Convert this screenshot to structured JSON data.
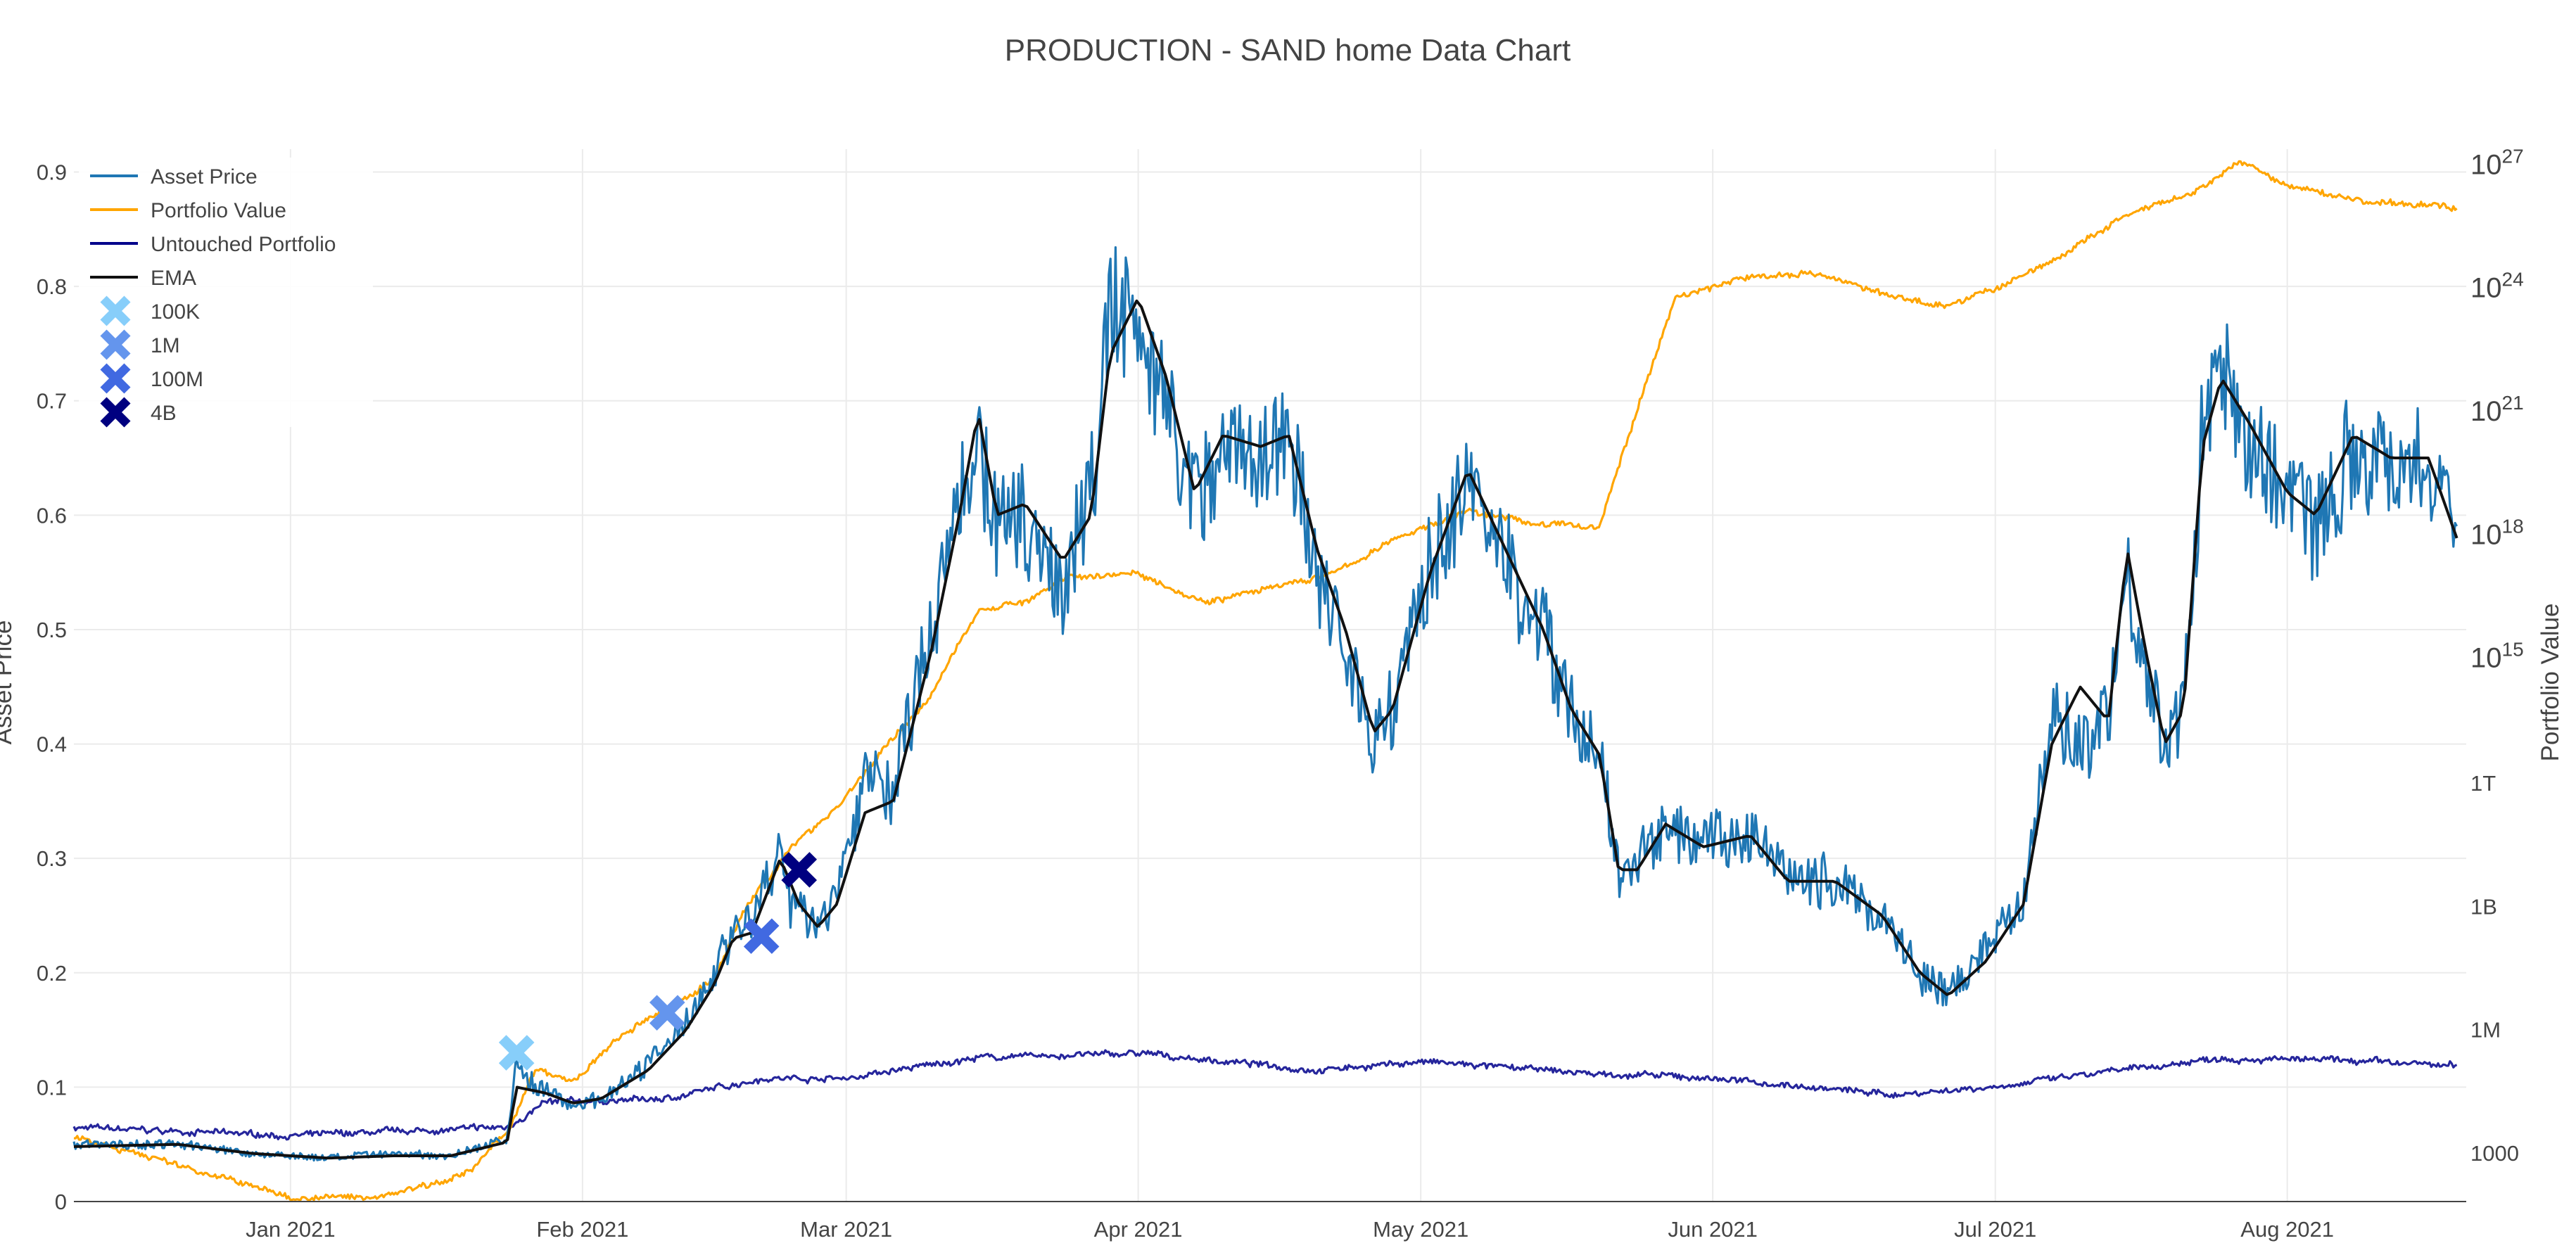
{
  "chart_data": {
    "type": "line",
    "title": "PRODUCTION - SAND home Data Chart",
    "xaxis": {
      "ticks": [
        {
          "date": "2021-01-01",
          "label": "Jan 2021"
        },
        {
          "date": "2021-02-01",
          "label": "Feb 2021"
        },
        {
          "date": "2021-03-01",
          "label": "Mar 2021"
        },
        {
          "date": "2021-04-01",
          "label": "Apr 2021"
        },
        {
          "date": "2021-05-01",
          "label": "May 2021"
        },
        {
          "date": "2021-06-01",
          "label": "Jun 2021"
        },
        {
          "date": "2021-07-01",
          "label": "Jul 2021"
        },
        {
          "date": "2021-08-01",
          "label": "Aug 2021"
        }
      ],
      "range": [
        "2020-12-09",
        "2021-08-20"
      ]
    },
    "yaxis_left": {
      "title": "Asset Price",
      "range": [
        0,
        0.92
      ],
      "ticks": [
        0,
        0.1,
        0.2,
        0.3,
        0.4,
        0.5,
        0.6,
        0.7,
        0.8,
        0.9
      ],
      "tick_labels": [
        "0",
        "0.1",
        "0.2",
        "0.3",
        "0.4",
        "0.5",
        "0.6",
        "0.7",
        "0.8",
        "0.9"
      ]
    },
    "yaxis_right": {
      "title": "Portfolio Value",
      "scale": "log",
      "range_log10": [
        1.8,
        27.4
      ],
      "ticks": [
        {
          "log10": 3,
          "label": "1000"
        },
        {
          "log10": 6,
          "label": "1M"
        },
        {
          "log10": 9,
          "label": "1B"
        },
        {
          "log10": 12,
          "label": "1T"
        },
        {
          "log10": 15,
          "base": "10",
          "exp": "15"
        },
        {
          "log10": 18,
          "base": "10",
          "exp": "18"
        },
        {
          "log10": 21,
          "base": "10",
          "exp": "21"
        },
        {
          "log10": 24,
          "base": "10",
          "exp": "24"
        },
        {
          "log10": 27,
          "base": "10",
          "exp": "27"
        }
      ]
    },
    "series": [
      {
        "name": "Asset Price",
        "axis": "left",
        "color": "#1f77b4",
        "noisy": true,
        "points": [
          [
            "2020-12-09",
            0.05
          ],
          [
            "2020-12-20",
            0.05
          ],
          [
            "2020-12-28",
            0.042
          ],
          [
            "2021-01-05",
            0.038
          ],
          [
            "2021-01-12",
            0.042
          ],
          [
            "2021-01-18",
            0.04
          ],
          [
            "2021-01-24",
            0.055
          ],
          [
            "2021-01-25",
            0.12
          ],
          [
            "2021-01-27",
            0.1
          ],
          [
            "2021-01-31",
            0.085
          ],
          [
            "2021-02-03",
            0.09
          ],
          [
            "2021-02-08",
            0.12
          ],
          [
            "2021-02-12",
            0.16
          ],
          [
            "2021-02-15",
            0.2
          ],
          [
            "2021-02-17",
            0.245
          ],
          [
            "2021-02-19",
            0.24
          ],
          [
            "2021-02-22",
            0.31
          ],
          [
            "2021-02-23",
            0.26
          ],
          [
            "2021-02-26",
            0.24
          ],
          [
            "2021-02-28",
            0.27
          ],
          [
            "2021-03-03",
            0.37
          ],
          [
            "2021-03-06",
            0.36
          ],
          [
            "2021-03-10",
            0.5
          ],
          [
            "2021-03-13",
            0.62
          ],
          [
            "2021-03-15",
            0.67
          ],
          [
            "2021-03-17",
            0.59
          ],
          [
            "2021-03-20",
            0.6
          ],
          [
            "2021-03-24",
            0.54
          ],
          [
            "2021-03-27",
            0.62
          ],
          [
            "2021-03-29",
            0.78
          ],
          [
            "2021-04-01",
            0.78
          ],
          [
            "2021-04-04",
            0.7
          ],
          [
            "2021-04-07",
            0.6
          ],
          [
            "2021-04-10",
            0.67
          ],
          [
            "2021-04-14",
            0.65
          ],
          [
            "2021-04-17",
            0.67
          ],
          [
            "2021-04-20",
            0.55
          ],
          [
            "2021-04-23",
            0.49
          ],
          [
            "2021-04-26",
            0.4
          ],
          [
            "2021-04-28",
            0.43
          ],
          [
            "2021-05-02",
            0.56
          ],
          [
            "2021-05-06",
            0.62
          ],
          [
            "2021-05-10",
            0.56
          ],
          [
            "2021-05-14",
            0.5
          ],
          [
            "2021-05-17",
            0.43
          ],
          [
            "2021-05-20",
            0.39
          ],
          [
            "2021-05-22",
            0.28
          ],
          [
            "2021-05-24",
            0.3
          ],
          [
            "2021-05-27",
            0.32
          ],
          [
            "2021-05-31",
            0.31
          ],
          [
            "2021-06-05",
            0.32
          ],
          [
            "2021-06-09",
            0.28
          ],
          [
            "2021-06-14",
            0.28
          ],
          [
            "2021-06-19",
            0.25
          ],
          [
            "2021-06-23",
            0.2
          ],
          [
            "2021-06-26",
            0.18
          ],
          [
            "2021-06-30",
            0.22
          ],
          [
            "2021-07-04",
            0.27
          ],
          [
            "2021-07-07",
            0.42
          ],
          [
            "2021-07-10",
            0.4
          ],
          [
            "2021-07-13",
            0.43
          ],
          [
            "2021-07-15",
            0.56
          ],
          [
            "2021-07-17",
            0.47
          ],
          [
            "2021-07-19",
            0.4
          ],
          [
            "2021-07-21",
            0.43
          ],
          [
            "2021-07-23",
            0.68
          ],
          [
            "2021-07-25",
            0.72
          ],
          [
            "2021-07-28",
            0.67
          ],
          [
            "2021-08-01",
            0.62
          ],
          [
            "2021-08-04",
            0.6
          ],
          [
            "2021-08-08",
            0.66
          ],
          [
            "2021-08-12",
            0.65
          ],
          [
            "2021-08-16",
            0.64
          ],
          [
            "2021-08-19",
            0.59
          ]
        ]
      },
      {
        "name": "Portfolio Value",
        "axis": "right",
        "color": "#ffa500",
        "noisy": true,
        "points": [
          [
            "2020-12-09",
            3.4
          ],
          [
            "2020-12-20",
            2.7
          ],
          [
            "2021-01-01",
            1.9
          ],
          [
            "2021-01-10",
            1.9
          ],
          [
            "2021-01-20",
            2.5
          ],
          [
            "2021-01-24",
            3.5
          ],
          [
            "2021-01-27",
            5.0
          ],
          [
            "2021-01-31",
            4.7
          ],
          [
            "2021-02-05",
            5.8
          ],
          [
            "2021-02-10",
            6.5
          ],
          [
            "2021-02-15",
            7.2
          ],
          [
            "2021-02-18",
            8.8
          ],
          [
            "2021-02-20",
            9.5
          ],
          [
            "2021-02-24",
            10.6
          ],
          [
            "2021-02-28",
            11.4
          ],
          [
            "2021-03-05",
            12.8
          ],
          [
            "2021-03-10",
            14.1
          ],
          [
            "2021-03-15",
            16.2
          ],
          [
            "2021-03-20",
            16.4
          ],
          [
            "2021-03-25",
            17.0
          ],
          [
            "2021-04-01",
            17.1
          ],
          [
            "2021-04-08",
            16.4
          ],
          [
            "2021-04-15",
            16.7
          ],
          [
            "2021-04-22",
            17.1
          ],
          [
            "2021-04-29",
            18.0
          ],
          [
            "2021-05-06",
            18.6
          ],
          [
            "2021-05-13",
            18.3
          ],
          [
            "2021-05-20",
            18.2
          ],
          [
            "2021-05-21",
            19.0
          ],
          [
            "2021-05-28",
            23.8
          ],
          [
            "2021-06-05",
            24.3
          ],
          [
            "2021-06-12",
            24.4
          ],
          [
            "2021-06-20",
            23.8
          ],
          [
            "2021-06-26",
            23.6
          ],
          [
            "2021-07-02",
            24.1
          ],
          [
            "2021-07-08",
            24.8
          ],
          [
            "2021-07-15",
            25.8
          ],
          [
            "2021-07-22",
            26.3
          ],
          [
            "2021-07-27",
            27.1
          ],
          [
            "2021-08-01",
            26.5
          ],
          [
            "2021-08-10",
            26.1
          ],
          [
            "2021-08-19",
            26.0
          ]
        ]
      },
      {
        "name": "Untouched Portfolio",
        "axis": "right",
        "color": "#00008b",
        "noisy": true,
        "points": [
          [
            "2020-12-09",
            3.6
          ],
          [
            "2021-01-01",
            3.4
          ],
          [
            "2021-01-24",
            3.6
          ],
          [
            "2021-01-28",
            4.2
          ],
          [
            "2021-02-10",
            4.3
          ],
          [
            "2021-02-20",
            4.8
          ],
          [
            "2021-03-01",
            4.8
          ],
          [
            "2021-03-15",
            5.3
          ],
          [
            "2021-04-01",
            5.4
          ],
          [
            "2021-04-20",
            5.0
          ],
          [
            "2021-05-01",
            5.2
          ],
          [
            "2021-05-20",
            4.9
          ],
          [
            "2021-06-01",
            4.8
          ],
          [
            "2021-06-20",
            4.4
          ],
          [
            "2021-07-01",
            4.6
          ],
          [
            "2021-07-15",
            5.0
          ],
          [
            "2021-07-25",
            5.3
          ],
          [
            "2021-08-10",
            5.2
          ],
          [
            "2021-08-19",
            5.1
          ]
        ]
      },
      {
        "name": "EMA",
        "axis": "left",
        "color": "#111111",
        "noisy": false,
        "points": [
          [
            "2020-12-09",
            0.048
          ],
          [
            "2020-12-20",
            0.05
          ],
          [
            "2020-12-28",
            0.042
          ],
          [
            "2021-01-05",
            0.038
          ],
          [
            "2021-01-12",
            0.04
          ],
          [
            "2021-01-18",
            0.04
          ],
          [
            "2021-01-24",
            0.052
          ],
          [
            "2021-01-25",
            0.1
          ],
          [
            "2021-01-28",
            0.095
          ],
          [
            "2021-01-31",
            0.086
          ],
          [
            "2021-02-03",
            0.09
          ],
          [
            "2021-02-08",
            0.115
          ],
          [
            "2021-02-12",
            0.15
          ],
          [
            "2021-02-15",
            0.19
          ],
          [
            "2021-02-17",
            0.23
          ],
          [
            "2021-02-19",
            0.235
          ],
          [
            "2021-02-22",
            0.3
          ],
          [
            "2021-02-24",
            0.26
          ],
          [
            "2021-02-26",
            0.24
          ],
          [
            "2021-02-28",
            0.26
          ],
          [
            "2021-03-03",
            0.34
          ],
          [
            "2021-03-06",
            0.35
          ],
          [
            "2021-03-10",
            0.48
          ],
          [
            "2021-03-13",
            0.6
          ],
          [
            "2021-03-15",
            0.69
          ],
          [
            "2021-03-17",
            0.6
          ],
          [
            "2021-03-20",
            0.61
          ],
          [
            "2021-03-24",
            0.56
          ],
          [
            "2021-03-27",
            0.6
          ],
          [
            "2021-03-29",
            0.74
          ],
          [
            "2021-04-01",
            0.79
          ],
          [
            "2021-04-04",
            0.72
          ],
          [
            "2021-04-07",
            0.62
          ],
          [
            "2021-04-10",
            0.67
          ],
          [
            "2021-04-14",
            0.66
          ],
          [
            "2021-04-17",
            0.67
          ],
          [
            "2021-04-20",
            0.57
          ],
          [
            "2021-04-23",
            0.5
          ],
          [
            "2021-04-26",
            0.41
          ],
          [
            "2021-04-28",
            0.43
          ],
          [
            "2021-05-02",
            0.55
          ],
          [
            "2021-05-06",
            0.64
          ],
          [
            "2021-05-10",
            0.57
          ],
          [
            "2021-05-14",
            0.5
          ],
          [
            "2021-05-17",
            0.43
          ],
          [
            "2021-05-20",
            0.39
          ],
          [
            "2021-05-22",
            0.29
          ],
          [
            "2021-05-24",
            0.29
          ],
          [
            "2021-05-27",
            0.33
          ],
          [
            "2021-05-31",
            0.31
          ],
          [
            "2021-06-05",
            0.32
          ],
          [
            "2021-06-09",
            0.28
          ],
          [
            "2021-06-14",
            0.28
          ],
          [
            "2021-06-19",
            0.25
          ],
          [
            "2021-06-23",
            0.2
          ],
          [
            "2021-06-26",
            0.18
          ],
          [
            "2021-06-30",
            0.21
          ],
          [
            "2021-07-04",
            0.26
          ],
          [
            "2021-07-07",
            0.4
          ],
          [
            "2021-07-10",
            0.45
          ],
          [
            "2021-07-13",
            0.42
          ],
          [
            "2021-07-15",
            0.57
          ],
          [
            "2021-07-17",
            0.48
          ],
          [
            "2021-07-19",
            0.4
          ],
          [
            "2021-07-21",
            0.43
          ],
          [
            "2021-07-23",
            0.66
          ],
          [
            "2021-07-25",
            0.72
          ],
          [
            "2021-07-28",
            0.68
          ],
          [
            "2021-08-01",
            0.62
          ],
          [
            "2021-08-04",
            0.6
          ],
          [
            "2021-08-08",
            0.67
          ],
          [
            "2021-08-12",
            0.65
          ],
          [
            "2021-08-16",
            0.65
          ],
          [
            "2021-08-19",
            0.58
          ]
        ]
      }
    ],
    "markers": [
      {
        "name": "100K",
        "color": "#87cefa",
        "points": [
          [
            "2021-01-25",
            0.13
          ]
        ]
      },
      {
        "name": "1M",
        "color": "#6495ed",
        "points": [
          [
            "2021-02-10",
            0.165
          ]
        ]
      },
      {
        "name": "100M",
        "color": "#4169e1",
        "points": [
          [
            "2021-02-20",
            0.232
          ]
        ]
      },
      {
        "name": "4B",
        "color": "#000080",
        "points": [
          [
            "2021-02-24",
            0.29
          ]
        ]
      }
    ],
    "legend": {
      "position": "top-left",
      "items": [
        "Asset Price",
        "Portfolio Value",
        "Untouched Portfolio",
        "EMA",
        "100K",
        "1M",
        "100M",
        "4B"
      ]
    },
    "grid": true
  }
}
